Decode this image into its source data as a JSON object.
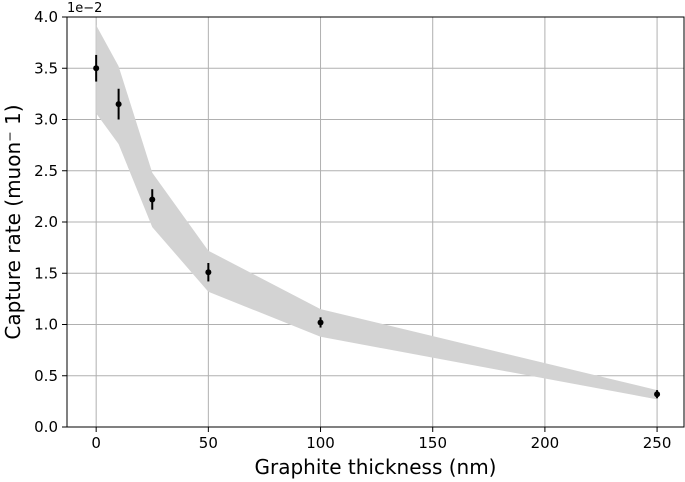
{
  "chart_data": {
    "type": "scatter",
    "xlabel": "Graphite thickness (nm)",
    "ylabel": "Capture rate (muon⁻ 1)",
    "y_offset_label": "1e−2",
    "xlim": [
      -13,
      262
    ],
    "ylim": [
      0.0,
      4.0
    ],
    "x_ticks": [
      0,
      50,
      100,
      150,
      200,
      250
    ],
    "x_tick_labels": [
      "0",
      "50",
      "100",
      "150",
      "200",
      "250"
    ],
    "y_ticks": [
      0.0,
      0.5,
      1.0,
      1.5,
      2.0,
      2.5,
      3.0,
      3.5,
      4.0
    ],
    "y_tick_labels": [
      "0.0",
      "0.5",
      "1.0",
      "1.5",
      "2.0",
      "2.5",
      "3.0",
      "3.5",
      "4.0"
    ],
    "grid": true,
    "series": [
      {
        "x": [
          0,
          10,
          25,
          50,
          100,
          250
        ],
        "y": [
          3.5,
          3.15,
          2.22,
          1.51,
          1.02,
          0.32
        ],
        "yerr": [
          0.13,
          0.15,
          0.1,
          0.09,
          0.05,
          0.04
        ]
      }
    ],
    "band": {
      "x": [
        0,
        10,
        25,
        50,
        100,
        250
      ],
      "upper": [
        3.92,
        3.52,
        2.48,
        1.72,
        1.15,
        0.36
      ],
      "lower": [
        3.06,
        2.76,
        1.95,
        1.32,
        0.88,
        0.27
      ],
      "color": "#d3d3d3"
    },
    "marker_color": "#000000"
  }
}
